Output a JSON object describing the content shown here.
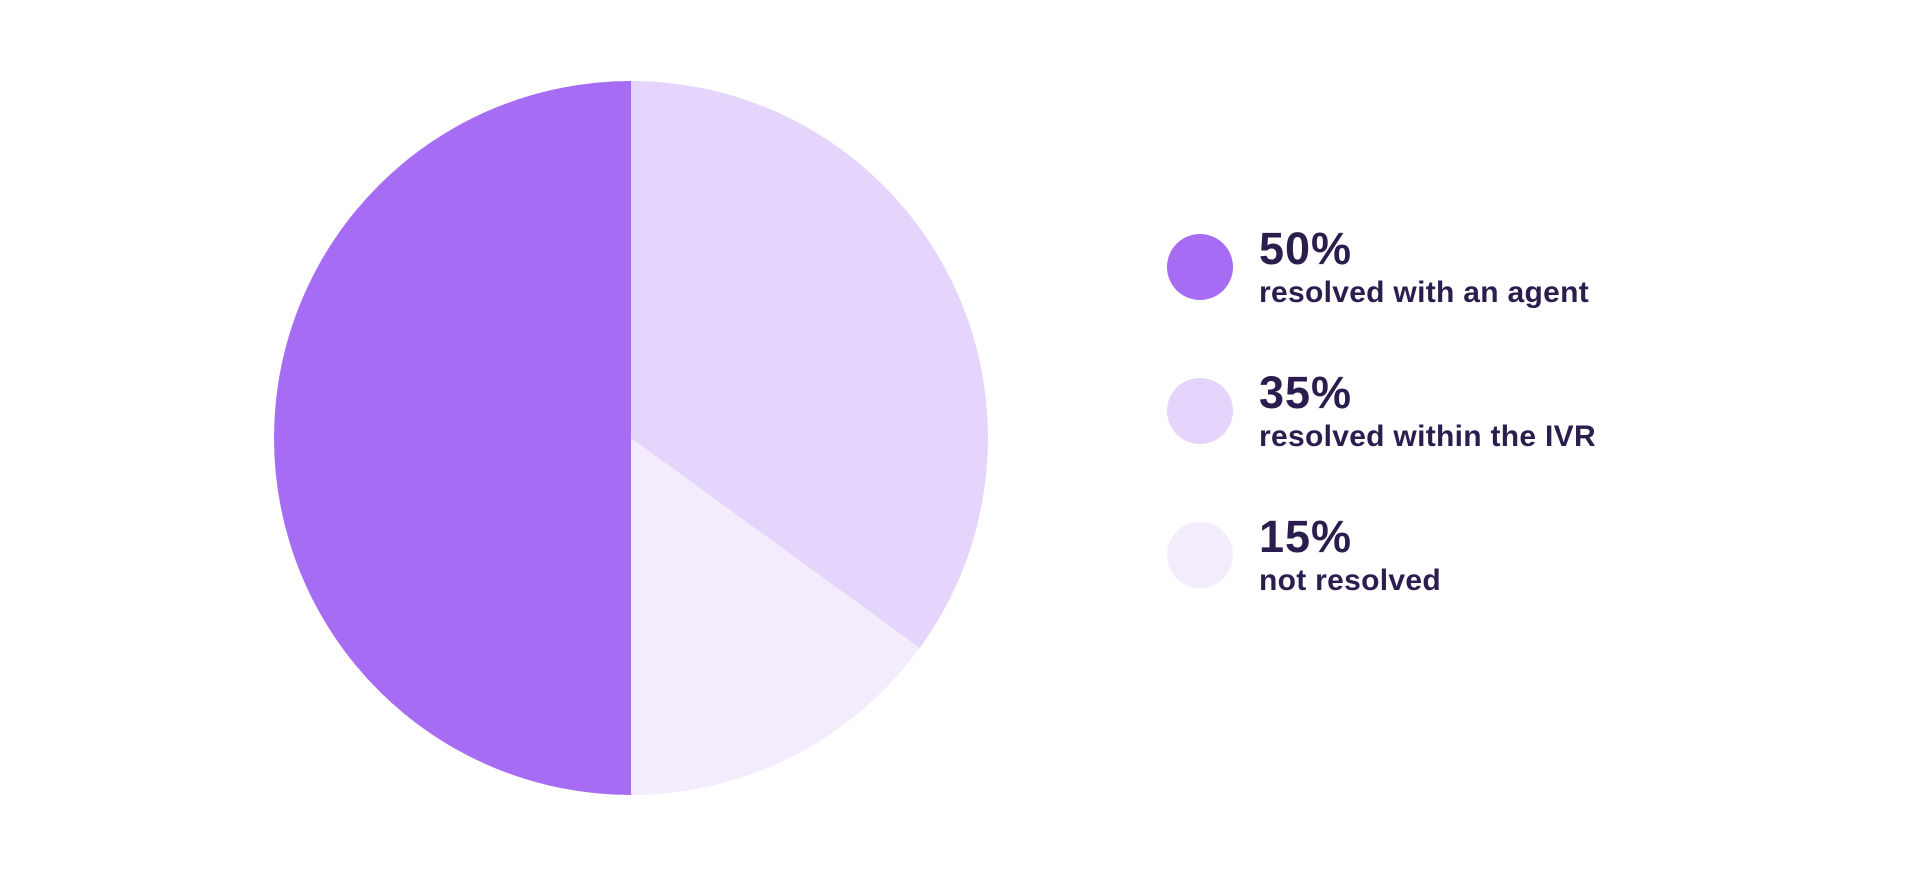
{
  "background_color": "#ffffff",
  "text_color": "#2B1D4E",
  "chart_data": {
    "type": "pie",
    "title": "",
    "start_angle_deg": 180,
    "direction": "clockwise",
    "legend_position": "right",
    "slices": [
      {
        "value": 50,
        "value_text": "50%",
        "label": "resolved with an agent",
        "color": "#A76CF4"
      },
      {
        "value": 35,
        "value_text": "35%",
        "label": "resolved within the IVR",
        "color": "#E5D4FB"
      },
      {
        "value": 15,
        "value_text": "15%",
        "label": "not resolved",
        "color": "#F3ECFC"
      }
    ]
  }
}
